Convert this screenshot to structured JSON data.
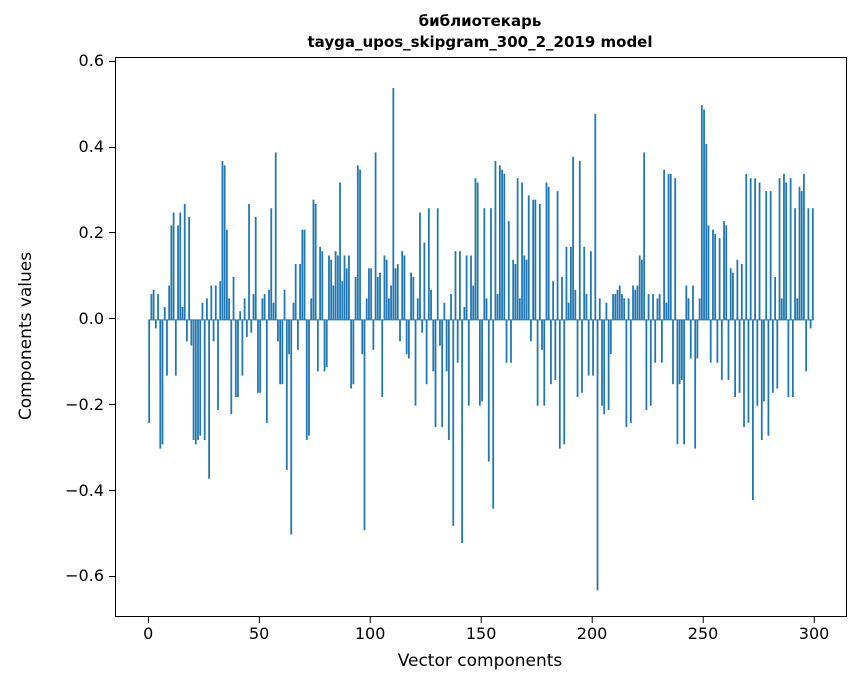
{
  "chart_data": {
    "type": "bar",
    "title": "библиотекарь\ntayga_upos_skipgram_300_2_2019 model",
    "title_line1": "библиотекарь",
    "title_line2": "tayga_upos_skipgram_300_2_2019 model",
    "xlabel": "Vector components",
    "ylabel": "Components values",
    "bar_color": "#1f77b4",
    "n_components": 300,
    "xlim": [
      -14.95,
      313.95
    ],
    "ylim": [
      -0.69,
      0.61
    ],
    "grid": false,
    "legend": null,
    "xtick_values": [
      0,
      50,
      100,
      150,
      200,
      250,
      300
    ],
    "xtick_labels": [
      "0",
      "50",
      "100",
      "150",
      "200",
      "250",
      "300"
    ],
    "ytick_values": [
      0.6,
      0.4,
      0.2,
      0.0,
      -0.2,
      -0.4,
      -0.6
    ],
    "ytick_labels": [
      "0.6",
      "0.4",
      "0.2",
      "0.0",
      "−0.2",
      "−0.4",
      "−0.6"
    ],
    "values": [
      -0.24,
      0.06,
      0.07,
      -0.02,
      0.06,
      -0.3,
      -0.29,
      0.03,
      -0.13,
      0.08,
      0.22,
      0.25,
      -0.13,
      0.22,
      0.25,
      0.03,
      0.27,
      -0.05,
      0.24,
      -0.06,
      -0.28,
      -0.29,
      -0.28,
      -0.27,
      0.04,
      -0.28,
      0.05,
      -0.37,
      0.08,
      -0.05,
      0.08,
      -0.21,
      0.09,
      0.37,
      0.36,
      0.21,
      0.05,
      -0.22,
      0.1,
      -0.18,
      -0.18,
      0.02,
      -0.13,
      0.05,
      -0.04,
      0.27,
      -0.03,
      0.06,
      0.24,
      -0.17,
      -0.17,
      0.05,
      0.06,
      -0.24,
      0.07,
      0.26,
      0.04,
      0.39,
      -0.05,
      -0.15,
      -0.15,
      0.07,
      -0.35,
      -0.08,
      -0.5,
      0.04,
      0.13,
      -0.07,
      0.13,
      0.21,
      0.21,
      -0.28,
      -0.27,
      0.05,
      0.28,
      0.27,
      -0.12,
      0.17,
      0.16,
      -0.12,
      -0.11,
      0.15,
      0.14,
      0.08,
      0.16,
      0.15,
      0.32,
      0.09,
      0.15,
      0.12,
      0.15,
      -0.16,
      -0.15,
      0.1,
      0.36,
      0.35,
      -0.08,
      -0.49,
      0.05,
      0.12,
      0.12,
      -0.07,
      0.39,
      0.1,
      0.11,
      -0.18,
      0.15,
      0.14,
      0.05,
      0.08,
      0.54,
      0.12,
      0.13,
      -0.05,
      0.16,
      0.15,
      -0.08,
      -0.09,
      0.11,
      0.1,
      -0.2,
      0.05,
      0.25,
      -0.03,
      0.18,
      -0.15,
      0.26,
      0.07,
      -0.12,
      -0.25,
      0.26,
      -0.06,
      -0.25,
      0.04,
      -0.12,
      -0.28,
      0.06,
      -0.48,
      0.16,
      -0.1,
      0.16,
      -0.52,
      0.03,
      0.15,
      -0.2,
      0.15,
      0.08,
      0.33,
      0.32,
      -0.2,
      -0.19,
      0.26,
      0.05,
      -0.33,
      0.26,
      -0.44,
      0.37,
      0.06,
      0.36,
      0.35,
      0.34,
      -0.1,
      0.23,
      -0.1,
      0.14,
      0.13,
      0.33,
      0.05,
      0.32,
      0.15,
      0.14,
      0.29,
      -0.05,
      0.28,
      0.28,
      -0.2,
      0.27,
      -0.07,
      -0.2,
      0.32,
      0.31,
      -0.15,
      0.09,
      -0.14,
      0.3,
      -0.3,
      0.1,
      -0.29,
      0.17,
      0.04,
      0.17,
      0.38,
      0.07,
      -0.18,
      0.37,
      -0.17,
      0.17,
      0.06,
      -0.13,
      0.16,
      -0.13,
      0.48,
      -0.63,
      0.05,
      -0.2,
      -0.22,
      0.04,
      -0.21,
      -0.08,
      0.06,
      0.06,
      0.07,
      0.08,
      0.06,
      0.05,
      -0.25,
      0.05,
      -0.24,
      0.08,
      0.07,
      0.08,
      0.15,
      0.14,
      0.39,
      -0.21,
      0.06,
      -0.2,
      0.06,
      -0.1,
      0.05,
      0.06,
      -0.1,
      0.35,
      0.04,
      0.34,
      0.34,
      -0.15,
      0.33,
      -0.29,
      -0.15,
      -0.14,
      -0.29,
      0.08,
      0.05,
      -0.09,
      0.08,
      -0.3,
      -0.09,
      0.05,
      0.5,
      0.49,
      0.41,
      0.22,
      -0.1,
      0.21,
      0.2,
      -0.1,
      0.19,
      -0.14,
      0.23,
      0.22,
      -0.14,
      0.12,
      0.11,
      -0.18,
      0.14,
      -0.17,
      0.13,
      -0.25,
      0.34,
      -0.24,
      0.33,
      -0.42,
      0.33,
      -0.2,
      0.32,
      -0.28,
      -0.19,
      0.3,
      -0.27,
      0.3,
      -0.17,
      0.1,
      -0.16,
      0.33,
      0.05,
      0.34,
      0.32,
      -0.18,
      0.33,
      -0.18,
      0.26,
      0.05,
      0.31,
      0.3,
      0.34,
      -0.12,
      0.26,
      -0.02,
      0.26
    ]
  }
}
